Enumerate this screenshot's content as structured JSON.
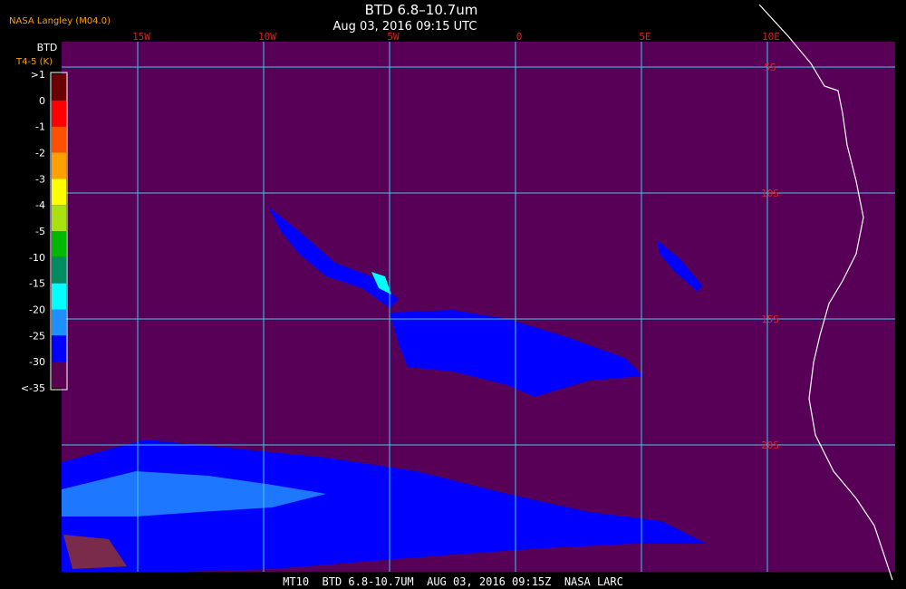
{
  "header": {
    "source": "NASA Langley (M04.0)",
    "title": "BTD 6.8–10.7um",
    "subtitle": "Aug 03, 2016 09:15 UTC"
  },
  "map": {
    "longitude_labels": [
      "15W",
      "10W",
      "5W",
      "0",
      "5E",
      "10E"
    ],
    "latitude_labels": [
      "5S",
      "10S",
      "15S",
      "20S"
    ]
  },
  "legend": {
    "title": "BTD",
    "units": "T4-5 (K)",
    "labels": [
      ">1",
      "0",
      "-1",
      "-2",
      "-3",
      "-4",
      "-5",
      "-10",
      "-15",
      "-20",
      "-25",
      "-30",
      "<-35"
    ],
    "colors": [
      "#6b0000",
      "#ff0000",
      "#ff5000",
      "#ffa000",
      "#ffff00",
      "#a8e010",
      "#00b800",
      "#008c60",
      "#00ffff",
      "#1e90ff",
      "#0000ff",
      "#5a0050"
    ]
  },
  "footer": "MT10  BTD 6.8-10.7UM  AUG 03, 2016 09:15Z  NASA LARC"
}
